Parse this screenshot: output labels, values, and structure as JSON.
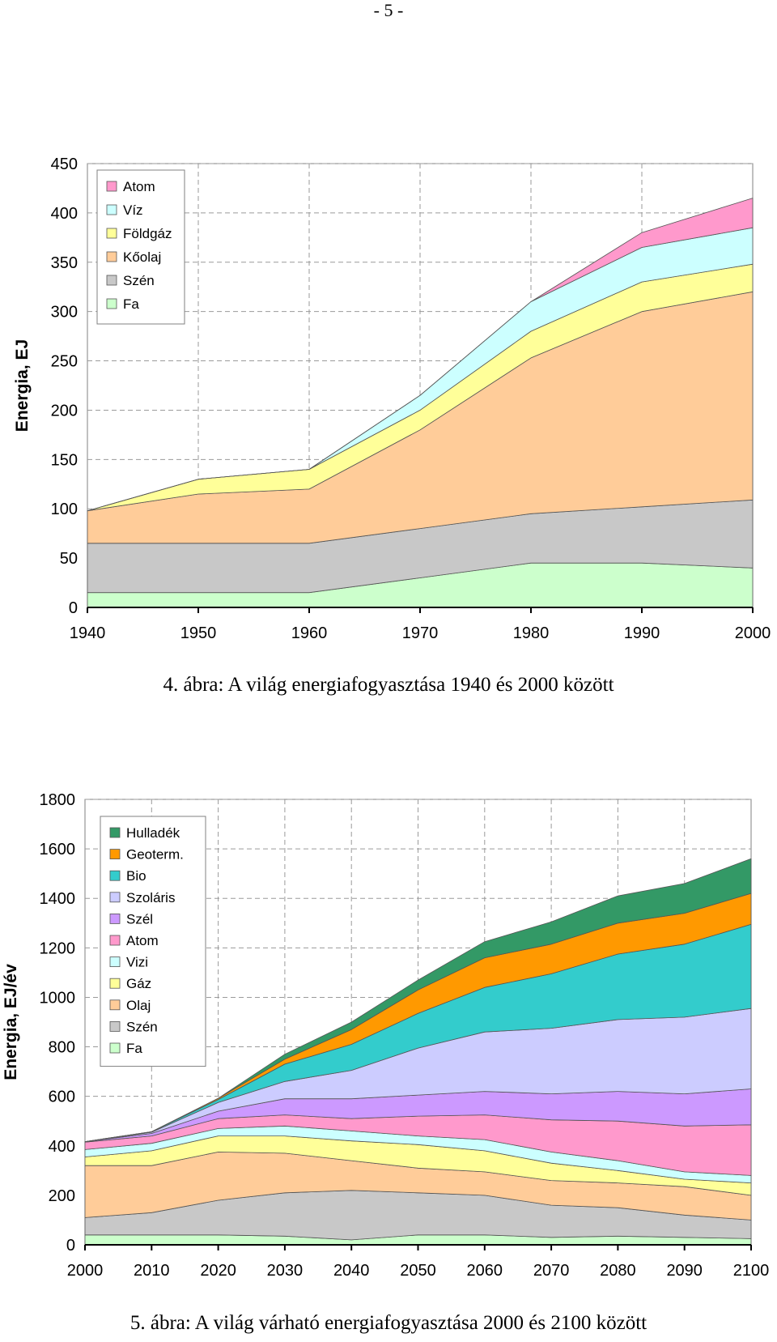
{
  "page_number": "- 5 -",
  "chart_data": [
    {
      "type": "area",
      "caption": "4. ábra: A világ energiafogyasztása 1940 és 2000 között",
      "ylabel": "Energia, EJ",
      "xlabel": "",
      "x": [
        1940,
        1950,
        1960,
        1970,
        1980,
        1990,
        2000
      ],
      "xticks": [
        "1940",
        "1950",
        "1960",
        "1970",
        "1980",
        "1990",
        "2000"
      ],
      "ylim": [
        0,
        450
      ],
      "yticks": [
        0,
        50,
        100,
        150,
        200,
        250,
        300,
        350,
        400,
        450
      ],
      "grid": "dashed",
      "legend_placement": "top-left",
      "stacked": true,
      "series": [
        {
          "name": "Fa",
          "color": "#ccffcc",
          "values": [
            15,
            15,
            15,
            30,
            45,
            45,
            40
          ]
        },
        {
          "name": "Szén",
          "color": "#c8c8c8",
          "values": [
            50,
            50,
            50,
            50,
            50,
            57,
            69
          ]
        },
        {
          "name": "Kőolaj",
          "color": "#ffcc99",
          "values": [
            33,
            50,
            55,
            100,
            158,
            198,
            211
          ]
        },
        {
          "name": "Földgáz",
          "color": "#ffff99",
          "values": [
            0,
            15,
            20,
            20,
            27,
            30,
            28
          ]
        },
        {
          "name": "Víz",
          "color": "#ccffff",
          "values": [
            0,
            0,
            0,
            15,
            30,
            35,
            37
          ]
        },
        {
          "name": "Atom",
          "color": "#ff99cc",
          "values": [
            0,
            0,
            0,
            0,
            0,
            15,
            30
          ]
        }
      ]
    },
    {
      "type": "area",
      "caption": "5. ábra: A világ várható energiafogyasztása 2000 és 2100 között",
      "ylabel": "Energia, EJ/év",
      "xlabel": "",
      "x": [
        2000,
        2010,
        2020,
        2030,
        2040,
        2050,
        2060,
        2070,
        2080,
        2090,
        2100
      ],
      "xticks": [
        "2000",
        "2010",
        "2020",
        "2030",
        "2040",
        "2050",
        "2060",
        "2070",
        "2080",
        "2090",
        "2100"
      ],
      "ylim": [
        0,
        1800
      ],
      "yticks": [
        0,
        200,
        400,
        600,
        800,
        1000,
        1200,
        1400,
        1600,
        1800
      ],
      "grid": "dashed",
      "legend_placement": "top-left",
      "stacked": true,
      "series": [
        {
          "name": "Fa",
          "color": "#ccffcc",
          "values": [
            40,
            40,
            40,
            35,
            20,
            40,
            40,
            30,
            35,
            30,
            25
          ]
        },
        {
          "name": "Szén",
          "color": "#c8c8c8",
          "values": [
            70,
            90,
            140,
            175,
            200,
            170,
            160,
            130,
            115,
            90,
            75
          ]
        },
        {
          "name": "Olaj",
          "color": "#ffcc99",
          "values": [
            210,
            190,
            195,
            160,
            120,
            100,
            95,
            100,
            100,
            115,
            100
          ]
        },
        {
          "name": "Gáz",
          "color": "#ffff99",
          "values": [
            35,
            60,
            65,
            70,
            80,
            95,
            85,
            70,
            50,
            30,
            50
          ]
        },
        {
          "name": "Vizi",
          "color": "#ccffff",
          "values": [
            30,
            30,
            30,
            40,
            40,
            35,
            45,
            45,
            40,
            30,
            30
          ]
        },
        {
          "name": "Atom",
          "color": "#ff99cc",
          "values": [
            30,
            30,
            40,
            45,
            50,
            80,
            100,
            130,
            160,
            185,
            205
          ]
        },
        {
          "name": "Szél",
          "color": "#cc99ff",
          "values": [
            2,
            10,
            30,
            65,
            80,
            85,
            95,
            105,
            120,
            130,
            145
          ]
        },
        {
          "name": "Szoláris",
          "color": "#ccccff",
          "values": [
            0,
            5,
            35,
            70,
            115,
            190,
            240,
            265,
            290,
            310,
            325
          ]
        },
        {
          "name": "Bio",
          "color": "#33cccc",
          "values": [
            0,
            2,
            12,
            70,
            105,
            140,
            180,
            220,
            265,
            295,
            340
          ]
        },
        {
          "name": "Geoterm.",
          "color": "#ff9900",
          "values": [
            0,
            0,
            5,
            20,
            60,
            95,
            120,
            120,
            125,
            125,
            125
          ]
        },
        {
          "name": "Hulladék",
          "color": "#339966",
          "values": [
            0,
            0,
            0,
            20,
            30,
            40,
            65,
            90,
            110,
            120,
            140
          ]
        }
      ]
    }
  ]
}
